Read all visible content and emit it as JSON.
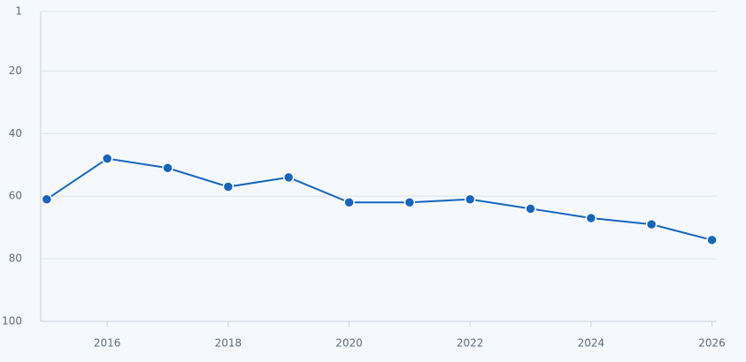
{
  "chart_data": {
    "type": "line",
    "x": [
      2015,
      2016,
      2017,
      2018,
      2019,
      2020,
      2021,
      2022,
      2023,
      2024,
      2025,
      2026
    ],
    "series": [
      {
        "color": "#1565c0",
        "values": [
          61,
          48,
          51,
          57,
          54,
          62,
          62,
          61,
          64,
          67,
          69,
          74
        ]
      }
    ],
    "xlim": [
      2014.9,
      2026.08
    ],
    "xticks": [
      2016,
      2018,
      2020,
      2022,
      2024,
      2026
    ],
    "ylim": [
      1,
      100
    ],
    "yticks": [
      1,
      20,
      40,
      60,
      80,
      100
    ],
    "y_reversed": true,
    "grid": true
  }
}
